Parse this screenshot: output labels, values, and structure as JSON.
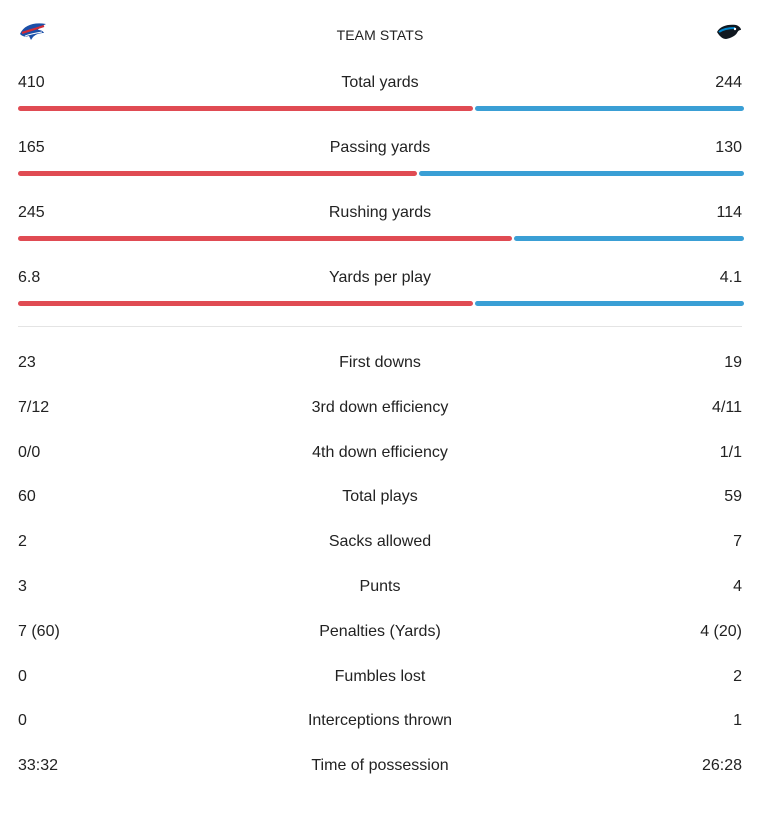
{
  "header": {
    "title": "TEAM STATS",
    "home_logo_icon": "bills-logo-icon",
    "away_logo_icon": "panthers-logo-icon"
  },
  "colors": {
    "home": "#e04b53",
    "away": "#3a9fd5",
    "divider": "#e4e4e4"
  },
  "bar_stats": [
    {
      "label": "Total yards",
      "home": "410",
      "away": "244",
      "home_share": 0.627
    },
    {
      "label": "Passing yards",
      "home": "165",
      "away": "130",
      "home_share": 0.55
    },
    {
      "label": "Rushing yards",
      "home": "245",
      "away": "114",
      "home_share": 0.68
    },
    {
      "label": "Yards per play",
      "home": "6.8",
      "away": "4.1",
      "home_share": 0.627
    }
  ],
  "list_stats": [
    {
      "label": "First downs",
      "home": "23",
      "away": "19"
    },
    {
      "label": "3rd down efficiency",
      "home": "7/12",
      "away": "4/11"
    },
    {
      "label": "4th down efficiency",
      "home": "0/0",
      "away": "1/1"
    },
    {
      "label": "Total plays",
      "home": "60",
      "away": "59"
    },
    {
      "label": "Sacks allowed",
      "home": "2",
      "away": "7"
    },
    {
      "label": "Punts",
      "home": "3",
      "away": "4"
    },
    {
      "label": "Penalties (Yards)",
      "home": "7 (60)",
      "away": "4 (20)"
    },
    {
      "label": "Fumbles lost",
      "home": "0",
      "away": "2"
    },
    {
      "label": "Interceptions thrown",
      "home": "0",
      "away": "1"
    },
    {
      "label": "Time of possession",
      "home": "33:32",
      "away": "26:28"
    }
  ]
}
